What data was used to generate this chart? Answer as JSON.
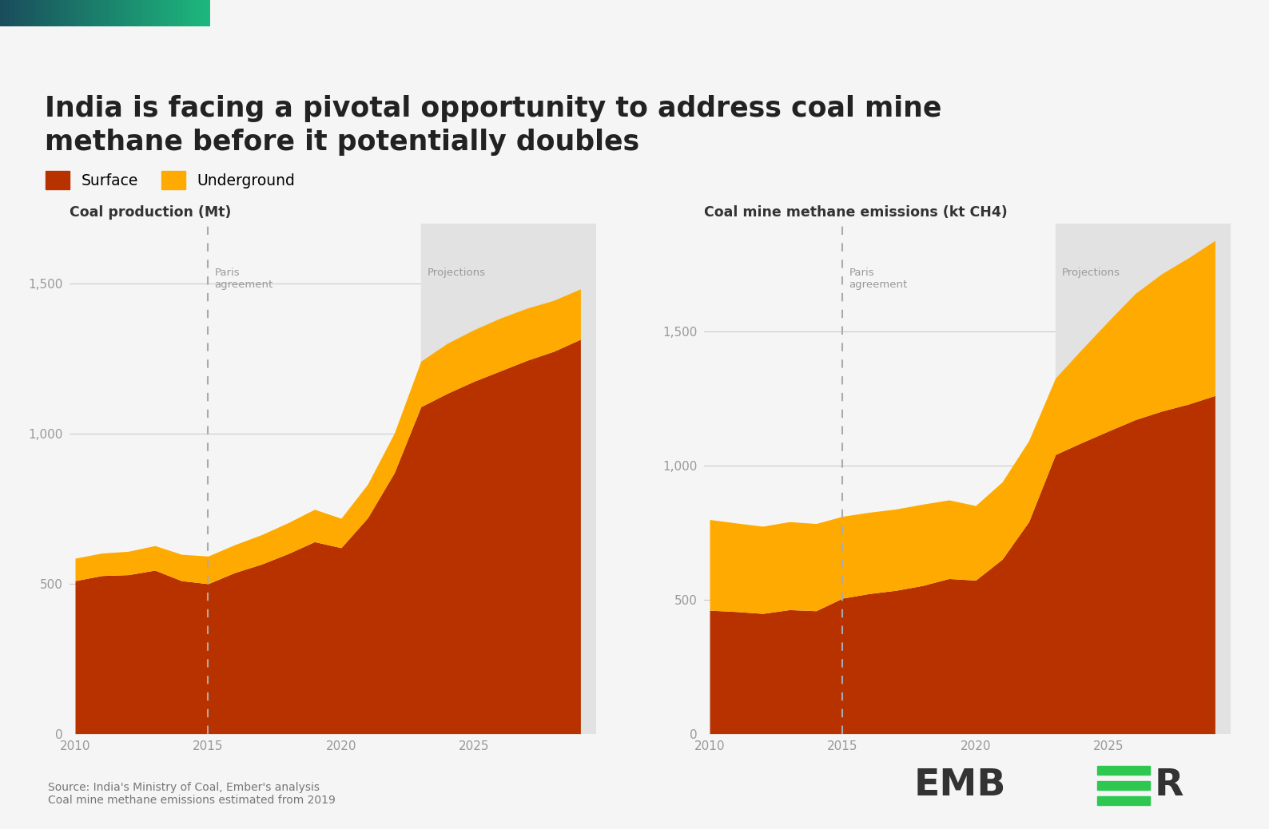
{
  "title_line1": "India is facing a pivotal opportunity to address coal mine",
  "title_line2": "methane before it potentially doubles",
  "title_fontsize": 25,
  "background_color": "#f5f5f5",
  "surface_color": "#b83200",
  "underground_color": "#ffaa00",
  "legend_labels": [
    "Surface",
    "Underground"
  ],
  "left_chart_title": "Coal production (Mt)",
  "right_chart_title": "Coal mine methane emissions (kt CH4)",
  "paris_year": 2015,
  "projection_start_year": 2023,
  "xmin": 2010,
  "xmax": 2029,
  "years": [
    2010,
    2011,
    2012,
    2013,
    2014,
    2015,
    2016,
    2017,
    2018,
    2019,
    2020,
    2021,
    2022,
    2023,
    2024,
    2025,
    2026,
    2027,
    2028,
    2029
  ],
  "coal_surface": [
    510,
    527,
    530,
    545,
    510,
    500,
    537,
    565,
    600,
    640,
    620,
    720,
    870,
    1090,
    1135,
    1175,
    1210,
    1245,
    1275,
    1315
  ],
  "coal_underground": [
    75,
    75,
    78,
    82,
    88,
    92,
    93,
    98,
    103,
    108,
    98,
    112,
    132,
    152,
    167,
    172,
    176,
    174,
    170,
    168
  ],
  "meth_surface": [
    460,
    455,
    448,
    462,
    458,
    505,
    522,
    534,
    552,
    578,
    572,
    650,
    790,
    1040,
    1085,
    1128,
    1170,
    1202,
    1228,
    1260
  ],
  "meth_underground": [
    338,
    330,
    325,
    328,
    325,
    305,
    303,
    303,
    303,
    293,
    278,
    288,
    302,
    285,
    348,
    410,
    470,
    512,
    545,
    578
  ],
  "yticks": [
    0,
    500,
    1000,
    1500
  ],
  "xticks": [
    2010,
    2015,
    2020,
    2025
  ],
  "source_text": "Source: India's Ministry of Coal, Ember's analysis\nCoal mine methane emissions estimated from 2019",
  "grid_color": "#cccccc",
  "paris_line_color": "#aaaaaa",
  "projection_bg_color": "#e2e2e2",
  "annotation_color": "#999999",
  "tick_color": "#999999",
  "ember_green": "#2ec851",
  "ember_dark": "#333333"
}
